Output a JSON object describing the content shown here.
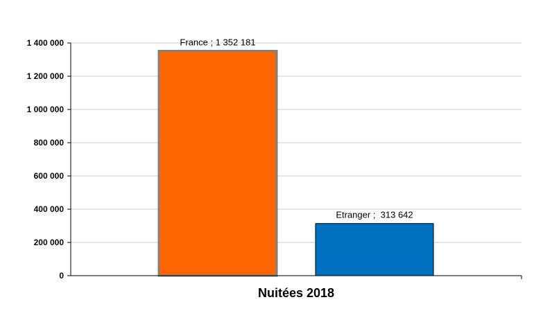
{
  "chart_data": {
    "type": "bar",
    "categories": [
      "France",
      "Etranger"
    ],
    "values": [
      1352181,
      313642
    ],
    "data_labels": [
      "France ; 1 352 181",
      "Etranger ;  313 642"
    ],
    "colors": [
      "#ff6600",
      "#0070c0"
    ],
    "xlabel": "Nuitées 2018",
    "ylabel": "",
    "title": "",
    "ylim": [
      0,
      1400000
    ],
    "yticks": [
      0,
      200000,
      400000,
      600000,
      800000,
      1000000,
      1200000,
      1400000
    ],
    "ytick_labels": [
      "0",
      "200 000",
      "400 000",
      "600 000",
      "800 000",
      "1 000 000",
      "1 200 000",
      "1 400 000"
    ],
    "grid": true,
    "legend": "none"
  }
}
